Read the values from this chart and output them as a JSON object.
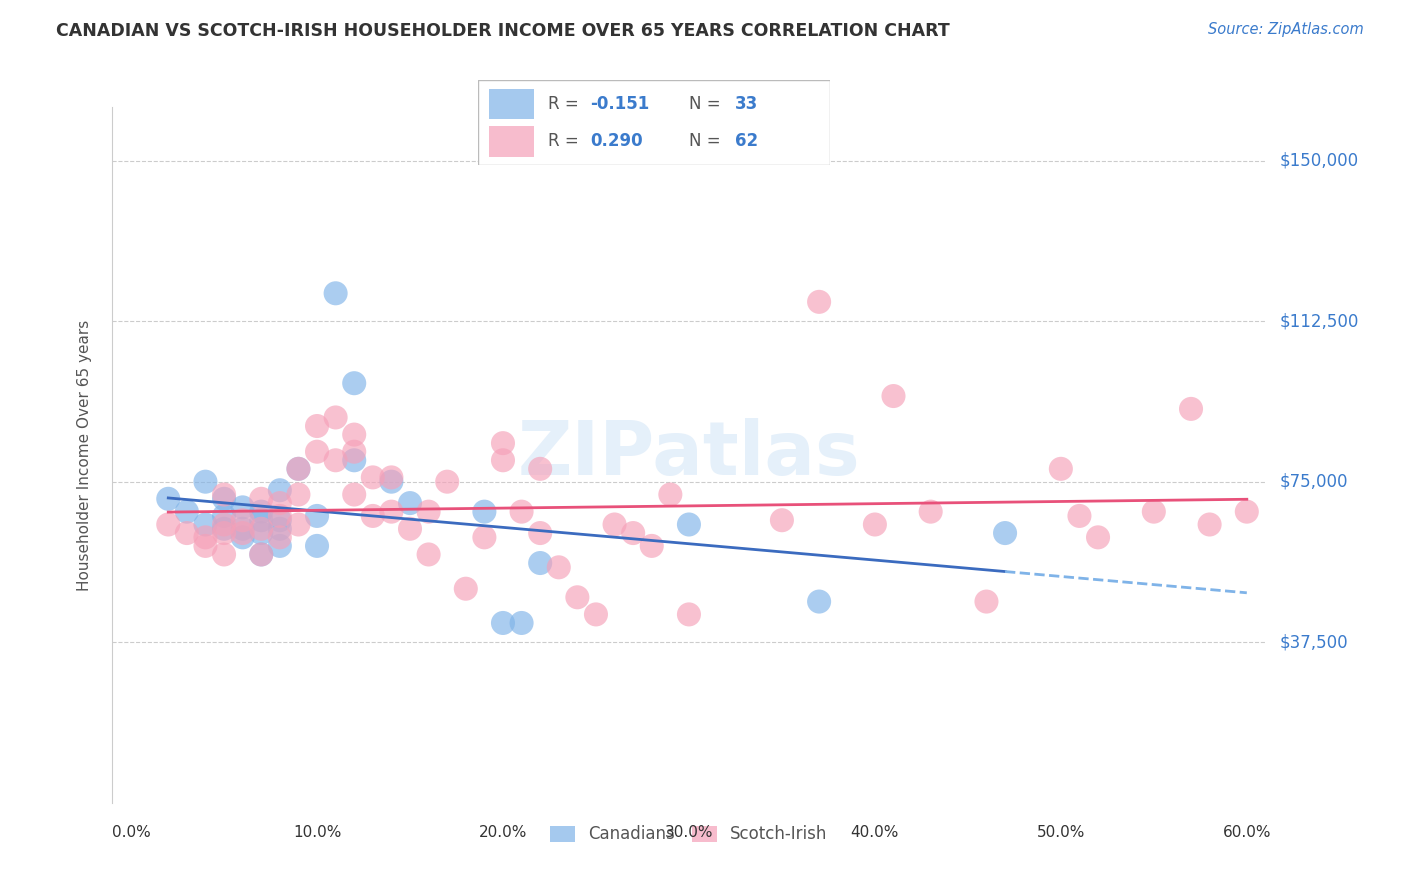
{
  "title": "CANADIAN VS SCOTCH-IRISH HOUSEHOLDER INCOME OVER 65 YEARS CORRELATION CHART",
  "source": "Source: ZipAtlas.com",
  "ylabel": "Householder Income Over 65 years",
  "yticks": [
    0,
    37500,
    75000,
    112500,
    150000
  ],
  "ytick_labels": [
    "",
    "$37,500",
    "$75,000",
    "$112,500",
    "$150,000"
  ],
  "xlim": [
    0.0,
    0.6
  ],
  "ylim": [
    0,
    162500
  ],
  "canadians_color": "#7fb3e8",
  "scotch_color": "#f5a0b8",
  "canadians_line_color": "#3b6bbf",
  "scotch_line_color": "#e8517a",
  "canadians_line_dashed_color": "#7fb3e8",
  "watermark_color": "#d0e4f7",
  "canadians_x": [
    0.02,
    0.03,
    0.04,
    0.04,
    0.05,
    0.05,
    0.05,
    0.06,
    0.06,
    0.06,
    0.07,
    0.07,
    0.07,
    0.07,
    0.08,
    0.08,
    0.08,
    0.08,
    0.09,
    0.1,
    0.1,
    0.11,
    0.12,
    0.12,
    0.14,
    0.15,
    0.19,
    0.2,
    0.21,
    0.22,
    0.3,
    0.37,
    0.47
  ],
  "canadians_y": [
    71000,
    68000,
    75000,
    65000,
    67000,
    64000,
    71000,
    69000,
    64000,
    62000,
    68000,
    66000,
    63000,
    58000,
    73000,
    66000,
    64000,
    60000,
    78000,
    67000,
    60000,
    119000,
    98000,
    80000,
    75000,
    70000,
    68000,
    42000,
    42000,
    56000,
    65000,
    47000,
    63000
  ],
  "scotch_x": [
    0.02,
    0.03,
    0.04,
    0.04,
    0.05,
    0.05,
    0.05,
    0.05,
    0.06,
    0.06,
    0.07,
    0.07,
    0.07,
    0.08,
    0.08,
    0.08,
    0.09,
    0.09,
    0.09,
    0.1,
    0.1,
    0.11,
    0.11,
    0.12,
    0.12,
    0.12,
    0.13,
    0.13,
    0.14,
    0.14,
    0.15,
    0.16,
    0.16,
    0.17,
    0.18,
    0.19,
    0.2,
    0.2,
    0.21,
    0.22,
    0.22,
    0.23,
    0.24,
    0.25,
    0.26,
    0.27,
    0.28,
    0.29,
    0.3,
    0.35,
    0.37,
    0.4,
    0.41,
    0.43,
    0.46,
    0.5,
    0.51,
    0.52,
    0.55,
    0.57,
    0.58,
    0.6
  ],
  "scotch_y": [
    65000,
    63000,
    62000,
    60000,
    72000,
    65000,
    63000,
    58000,
    66000,
    63000,
    71000,
    64000,
    58000,
    70000,
    67000,
    62000,
    78000,
    72000,
    65000,
    88000,
    82000,
    90000,
    80000,
    86000,
    82000,
    72000,
    76000,
    67000,
    76000,
    68000,
    64000,
    68000,
    58000,
    75000,
    50000,
    62000,
    84000,
    80000,
    68000,
    78000,
    63000,
    55000,
    48000,
    44000,
    65000,
    63000,
    60000,
    72000,
    44000,
    66000,
    117000,
    65000,
    95000,
    68000,
    47000,
    78000,
    67000,
    62000,
    68000,
    92000,
    65000,
    68000
  ]
}
